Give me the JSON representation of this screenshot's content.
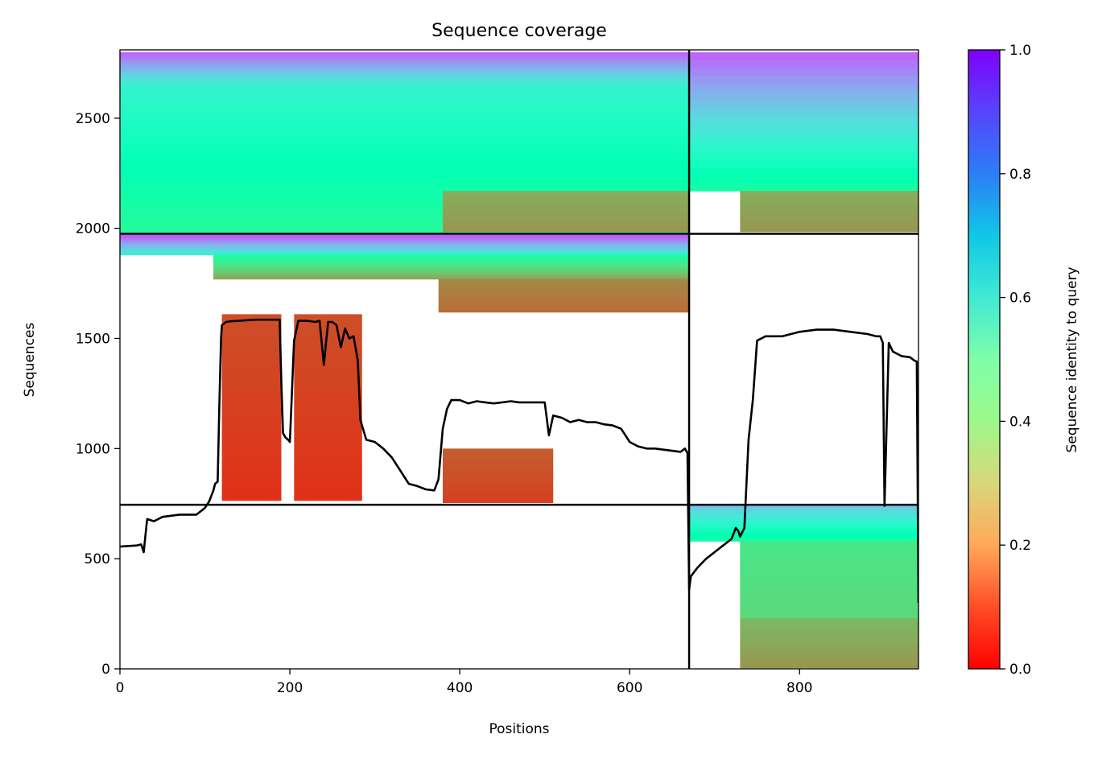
{
  "chart_data": {
    "type": "heatmap",
    "title": "Sequence coverage",
    "xlabel": "Positions",
    "ylabel": "Sequences",
    "xlim": [
      0,
      940
    ],
    "ylim": [
      0,
      2810
    ],
    "x_ticks": [
      0,
      200,
      400,
      600,
      800
    ],
    "y_ticks": [
      0,
      500,
      1000,
      1500,
      2000,
      2500
    ],
    "x_tick_labels": [
      "0",
      "200",
      "400",
      "600",
      "800"
    ],
    "y_tick_labels": [
      "0",
      "500",
      "1000",
      "1500",
      "2000",
      "2500"
    ],
    "colorbar": {
      "label": "Sequence identity to query",
      "range": [
        0.0,
        1.0
      ],
      "ticks": [
        0.0,
        0.2,
        0.4,
        0.6,
        0.8,
        1.0
      ],
      "tick_labels": [
        "0.0",
        "0.2",
        "0.4",
        "0.6",
        "0.8",
        "1.0"
      ],
      "colormap": "rainbow_r"
    },
    "block_boundaries": {
      "vertical_x": [
        670
      ],
      "horizontal_y": [
        745,
        1975
      ]
    },
    "coverage_blocks": [
      {
        "x": [
          0,
          670
        ],
        "y": [
          1975,
          2645
        ],
        "identity": [
          0.42,
          0.6
        ]
      },
      {
        "x": [
          0,
          670
        ],
        "y": [
          2645,
          2800
        ],
        "identity": [
          0.6,
          0.88
        ]
      },
      {
        "x": [
          380,
          670
        ],
        "y": [
          1985,
          2170
        ],
        "identity": [
          0.2,
          0.24
        ]
      },
      {
        "x": [
          670,
          940
        ],
        "y": [
          2170,
          2800
        ],
        "identity": [
          0.45,
          0.88
        ]
      },
      {
        "x": [
          730,
          940
        ],
        "y": [
          1985,
          2170
        ],
        "identity": [
          0.2,
          0.24
        ]
      },
      {
        "x": [
          0,
          670
        ],
        "y": [
          1880,
          1970
        ],
        "identity": [
          0.6,
          0.9
        ]
      },
      {
        "x": [
          110,
          670
        ],
        "y": [
          1770,
          1880
        ],
        "identity": [
          0.22,
          0.45
        ]
      },
      {
        "x": [
          375,
          670
        ],
        "y": [
          1620,
          1770
        ],
        "identity": [
          0.14,
          0.18
        ]
      },
      {
        "x": [
          120,
          190
        ],
        "y": [
          765,
          1610
        ],
        "identity": [
          0.06,
          0.1
        ]
      },
      {
        "x": [
          205,
          285
        ],
        "y": [
          765,
          1610
        ],
        "identity": [
          0.06,
          0.1
        ]
      },
      {
        "x": [
          380,
          510
        ],
        "y": [
          755,
          1000
        ],
        "identity": [
          0.08,
          0.12
        ]
      },
      {
        "x": [
          670,
          940
        ],
        "y": [
          580,
          745
        ],
        "identity": [
          0.45,
          0.72
        ]
      },
      {
        "x": [
          730,
          940
        ],
        "y": [
          230,
          580
        ],
        "identity": [
          0.32,
          0.36
        ]
      },
      {
        "x": [
          730,
          940
        ],
        "y": [
          5,
          230
        ],
        "identity": [
          0.2,
          0.26
        ]
      }
    ],
    "series": [
      {
        "x": [
          0,
          20,
          25,
          28,
          32,
          40,
          50,
          60,
          70,
          80,
          90,
          100,
          105,
          110,
          112,
          115,
          117,
          119,
          120,
          125,
          130,
          140,
          160,
          180,
          188,
          190,
          192,
          195,
          198,
          200,
          205,
          210,
          220,
          230,
          235,
          240,
          245,
          250,
          255,
          260,
          265,
          270,
          275,
          280,
          283,
          290,
          300,
          310,
          320,
          330,
          340,
          350,
          360,
          370,
          375,
          380,
          385,
          390,
          400,
          410,
          420,
          430,
          440,
          450,
          460,
          470,
          480,
          490,
          500,
          505,
          510,
          520,
          530,
          540,
          550,
          560,
          570,
          580,
          590,
          600,
          610,
          620,
          630,
          640,
          650,
          660,
          665,
          668,
          670,
          672,
          680,
          690,
          700,
          710,
          720,
          725,
          728,
          730,
          735,
          740,
          745,
          750,
          760,
          780,
          800,
          820,
          840,
          860,
          880,
          890,
          895,
          898,
          900,
          905,
          910,
          920,
          930,
          935,
          938,
          940
        ],
        "y": [
          555,
          560,
          565,
          530,
          680,
          670,
          690,
          695,
          700,
          700,
          700,
          730,
          760,
          810,
          840,
          850,
          1200,
          1500,
          1560,
          1575,
          1578,
          1580,
          1585,
          1585,
          1585,
          1300,
          1070,
          1050,
          1040,
          1030,
          1490,
          1580,
          1580,
          1575,
          1580,
          1380,
          1575,
          1575,
          1560,
          1460,
          1545,
          1500,
          1510,
          1400,
          1130,
          1040,
          1030,
          1000,
          960,
          900,
          840,
          830,
          815,
          810,
          860,
          1090,
          1180,
          1220,
          1220,
          1205,
          1215,
          1210,
          1205,
          1210,
          1215,
          1210,
          1210,
          1210,
          1210,
          1060,
          1150,
          1140,
          1120,
          1130,
          1120,
          1120,
          1110,
          1105,
          1090,
          1030,
          1010,
          1000,
          1000,
          995,
          990,
          985,
          1000,
          980,
          360,
          420,
          460,
          500,
          530,
          560,
          590,
          640,
          625,
          600,
          640,
          1040,
          1220,
          1490,
          1510,
          1510,
          1530,
          1540,
          1540,
          1530,
          1520,
          1510,
          1510,
          1480,
          740,
          1480,
          1440,
          1420,
          1415,
          1400,
          1395,
          300
        ]
      }
    ]
  }
}
